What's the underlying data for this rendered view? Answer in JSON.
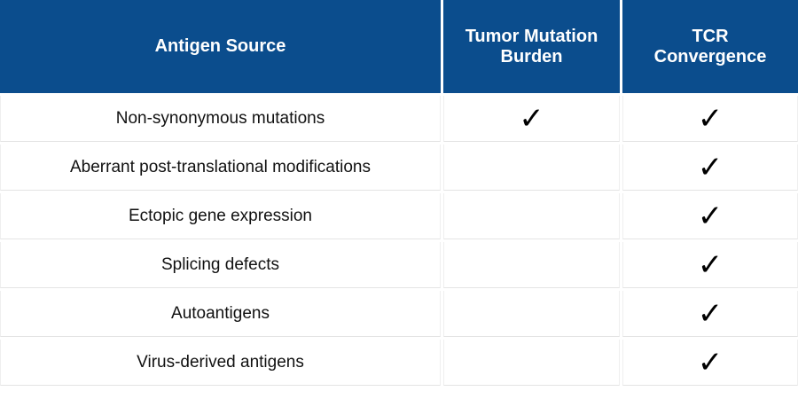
{
  "table": {
    "header": [
      "Antigen Source",
      "Tumor Mutation Burden",
      "TCR Convergence"
    ],
    "rows": [
      [
        "Non-synonymous mutations",
        "✓",
        "✓"
      ],
      [
        "Aberrant post-translational modifications",
        null,
        "✓"
      ],
      [
        "Ectopic gene expression",
        null,
        "✓"
      ],
      [
        "Splicing defects",
        null,
        "✓"
      ],
      [
        "Autoantigens",
        null,
        "✓"
      ],
      [
        "Virus-derived antigens",
        null,
        "✓"
      ]
    ]
  }
}
